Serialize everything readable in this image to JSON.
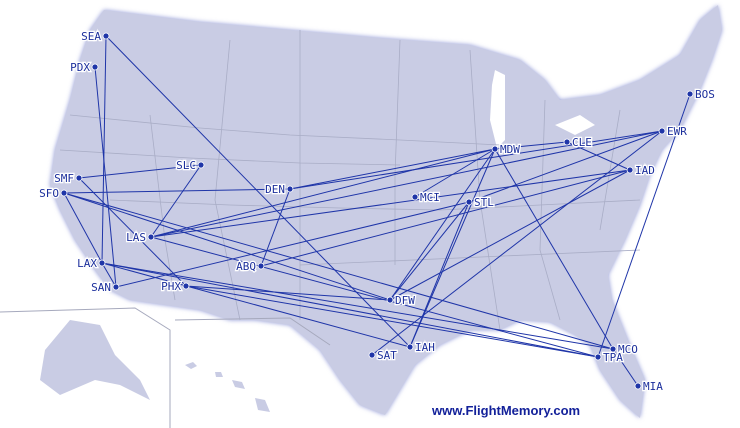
{
  "colors": {
    "land": "#c9cce4",
    "route": "#1f35a8",
    "border": "#a6a9bd",
    "water": "#ffffff"
  },
  "watermark": "www.FlightMemory.com",
  "airports": [
    {
      "code": "SEA",
      "label_side": "left"
    },
    {
      "code": "PDX",
      "label_side": "left"
    },
    {
      "code": "SMF",
      "label_side": "left"
    },
    {
      "code": "SFO",
      "label_side": "left"
    },
    {
      "code": "SLC",
      "label_side": "left"
    },
    {
      "code": "LAS",
      "label_side": "left"
    },
    {
      "code": "LAX",
      "label_side": "left"
    },
    {
      "code": "SAN",
      "label_side": "left"
    },
    {
      "code": "PHX",
      "label_side": "left"
    },
    {
      "code": "DEN",
      "label_side": "left"
    },
    {
      "code": "ABQ",
      "label_side": "left"
    },
    {
      "code": "MCI",
      "label_side": "right"
    },
    {
      "code": "STL",
      "label_side": "right"
    },
    {
      "code": "MDW",
      "label_side": "right"
    },
    {
      "code": "CLE",
      "label_side": "right"
    },
    {
      "code": "EWR",
      "label_side": "right"
    },
    {
      "code": "IAD",
      "label_side": "right"
    },
    {
      "code": "BOS",
      "label_side": "right"
    },
    {
      "code": "DFW",
      "label_side": "right"
    },
    {
      "code": "SAT",
      "label_side": "right"
    },
    {
      "code": "IAH",
      "label_side": "right"
    },
    {
      "code": "MCO",
      "label_side": "right"
    },
    {
      "code": "TPA",
      "label_side": "right"
    },
    {
      "code": "MIA",
      "label_side": "right"
    }
  ],
  "routes": [
    [
      "SEA",
      "LAX"
    ],
    [
      "SEA",
      "IAH"
    ],
    [
      "PDX",
      "SAN"
    ],
    [
      "SMF",
      "SLC"
    ],
    [
      "SMF",
      "PHX"
    ],
    [
      "SFO",
      "DEN"
    ],
    [
      "SFO",
      "LAX"
    ],
    [
      "SFO",
      "DFW"
    ],
    [
      "SFO",
      "MCO"
    ],
    [
      "SLC",
      "LAS"
    ],
    [
      "LAS",
      "EWR"
    ],
    [
      "LAS",
      "MDW"
    ],
    [
      "LAS",
      "IAD"
    ],
    [
      "LAS",
      "TPA"
    ],
    [
      "LAX",
      "MCO"
    ],
    [
      "LAX",
      "TPA"
    ],
    [
      "LAX",
      "IAH"
    ],
    [
      "SAN",
      "STL"
    ],
    [
      "PHX",
      "TPA"
    ],
    [
      "PHX",
      "DFW"
    ],
    [
      "DEN",
      "ABQ"
    ],
    [
      "DEN",
      "MDW"
    ],
    [
      "DEN",
      "EWR"
    ],
    [
      "ABQ",
      "IAD"
    ],
    [
      "MCI",
      "MDW"
    ],
    [
      "MDW",
      "DFW"
    ],
    [
      "MDW",
      "IAH"
    ],
    [
      "MDW",
      "MCO"
    ],
    [
      "STL",
      "DFW"
    ],
    [
      "STL",
      "IAH"
    ],
    [
      "STL",
      "EWR"
    ],
    [
      "CLE",
      "IAD"
    ],
    [
      "CLE",
      "MDW"
    ],
    [
      "EWR",
      "SAT"
    ],
    [
      "BOS",
      "TPA"
    ],
    [
      "MCO",
      "MIA"
    ],
    [
      "IAD",
      "DFW"
    ],
    [
      "LAX",
      "SAN"
    ]
  ]
}
